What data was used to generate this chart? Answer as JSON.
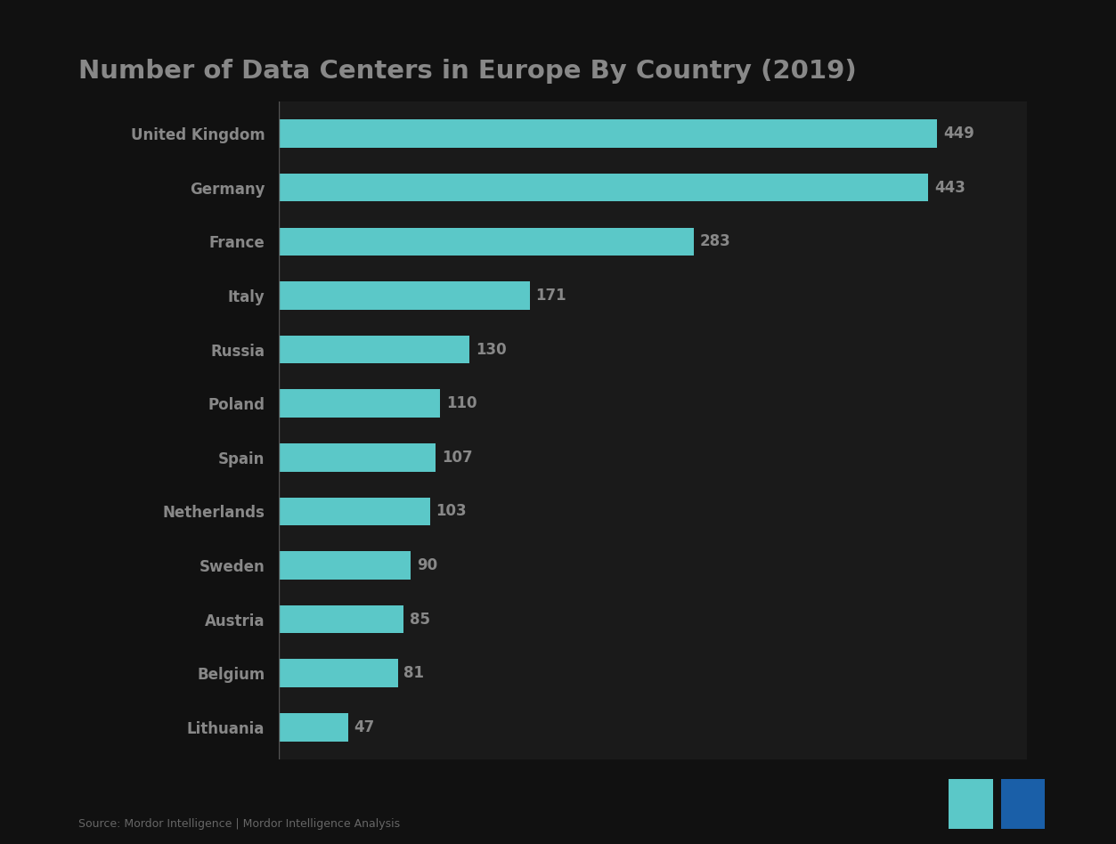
{
  "title": "Number of Data Centers in Europe By Country (2019)",
  "categories": [
    "Lithuania",
    "Belgium",
    "Austria",
    "Sweden",
    "Netherlands",
    "Spain",
    "Poland",
    "Russia",
    "Italy",
    "France",
    "Germany",
    "United Kingdom"
  ],
  "values": [
    47,
    81,
    85,
    90,
    103,
    107,
    110,
    130,
    171,
    283,
    443,
    449
  ],
  "bar_color": "#5BC8C8",
  "background_color": "#111111",
  "plot_bg_color": "#1a1a1a",
  "label_color": "#888888",
  "title_color": "#888888",
  "value_color": "#888888",
  "source_text": "Source: Mordor Intelligence | Mordor Intelligence Analysis",
  "logo_teal": "#5BC8C8",
  "logo_blue": "#1a5fa8",
  "title_fontsize": 21,
  "label_fontsize": 12,
  "value_fontsize": 12
}
